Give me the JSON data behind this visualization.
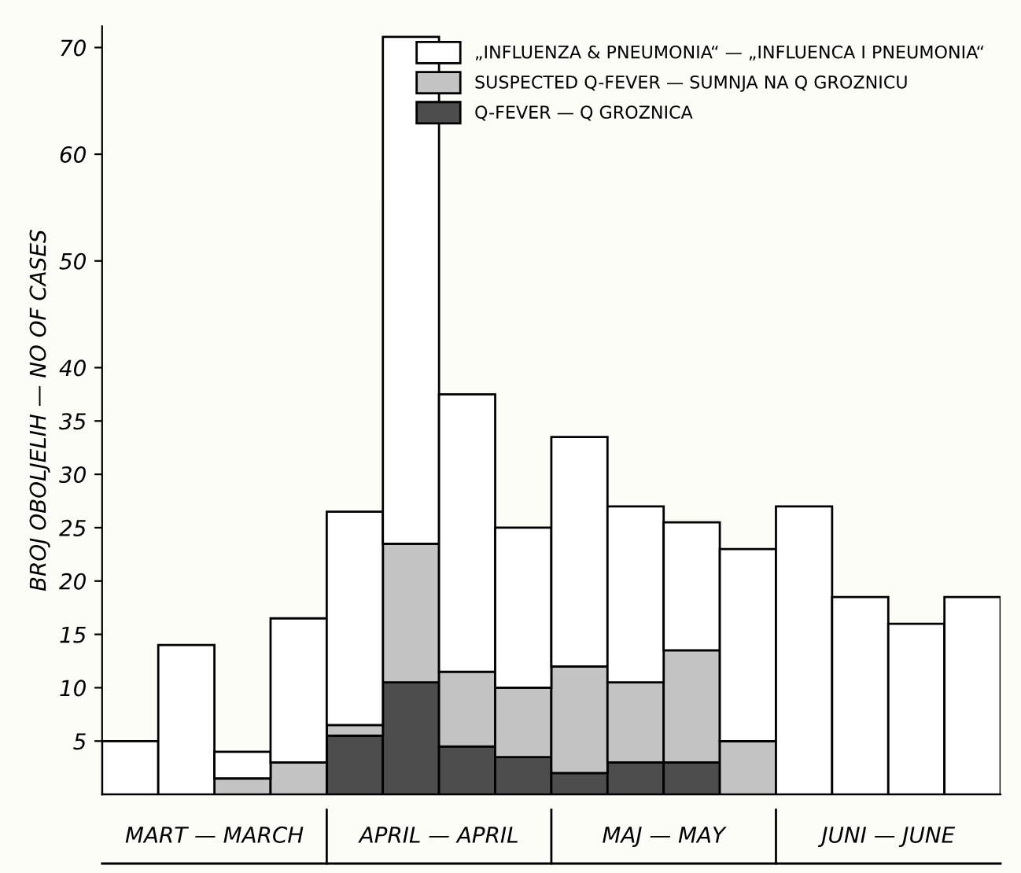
{
  "chart_data": {
    "type": "bar",
    "stacked": true,
    "ylabel": "BROJ OBOLJELIH — NO OF CASES",
    "categories": [
      null,
      null,
      null,
      null,
      null,
      null,
      null,
      null,
      null,
      null,
      null,
      null,
      null,
      null,
      null,
      null
    ],
    "annotations": [
      "MART — MARCH",
      "APRIL — APRIL",
      "MAJ — MAY",
      "JUNI — JUNE"
    ],
    "ylim": [
      0,
      72
    ],
    "yticks": [
      5,
      10,
      15,
      20,
      25,
      30,
      35,
      40,
      50,
      60,
      70
    ],
    "series": [
      {
        "name": "Q-FEVER — Q GROZNICA",
        "color": "#4d4d4d",
        "values": [
          0,
          0,
          0,
          0,
          5.5,
          10.5,
          4.5,
          3.5,
          2,
          3,
          3,
          0,
          0,
          0,
          0,
          0
        ]
      },
      {
        "name": "SUSPECTED Q-FEVER — SUMNJA NA Q GROZNICU",
        "color": "#c4c4c4",
        "values": [
          0,
          0,
          1.5,
          3,
          1,
          13,
          7,
          6.5,
          10,
          7.5,
          10.5,
          5,
          0,
          0,
          0,
          0
        ]
      },
      {
        "name": "„INFLUENZA & PNEUMONIA“ — „INFLUENCA I PNEUMONIA“",
        "color": "#ffffff",
        "values": [
          5,
          14,
          2.5,
          13.5,
          20,
          47.5,
          26,
          15,
          21.5,
          16.5,
          12,
          18,
          27,
          18.5,
          16,
          18.5
        ]
      }
    ],
    "legend": "top right",
    "grid": false
  }
}
